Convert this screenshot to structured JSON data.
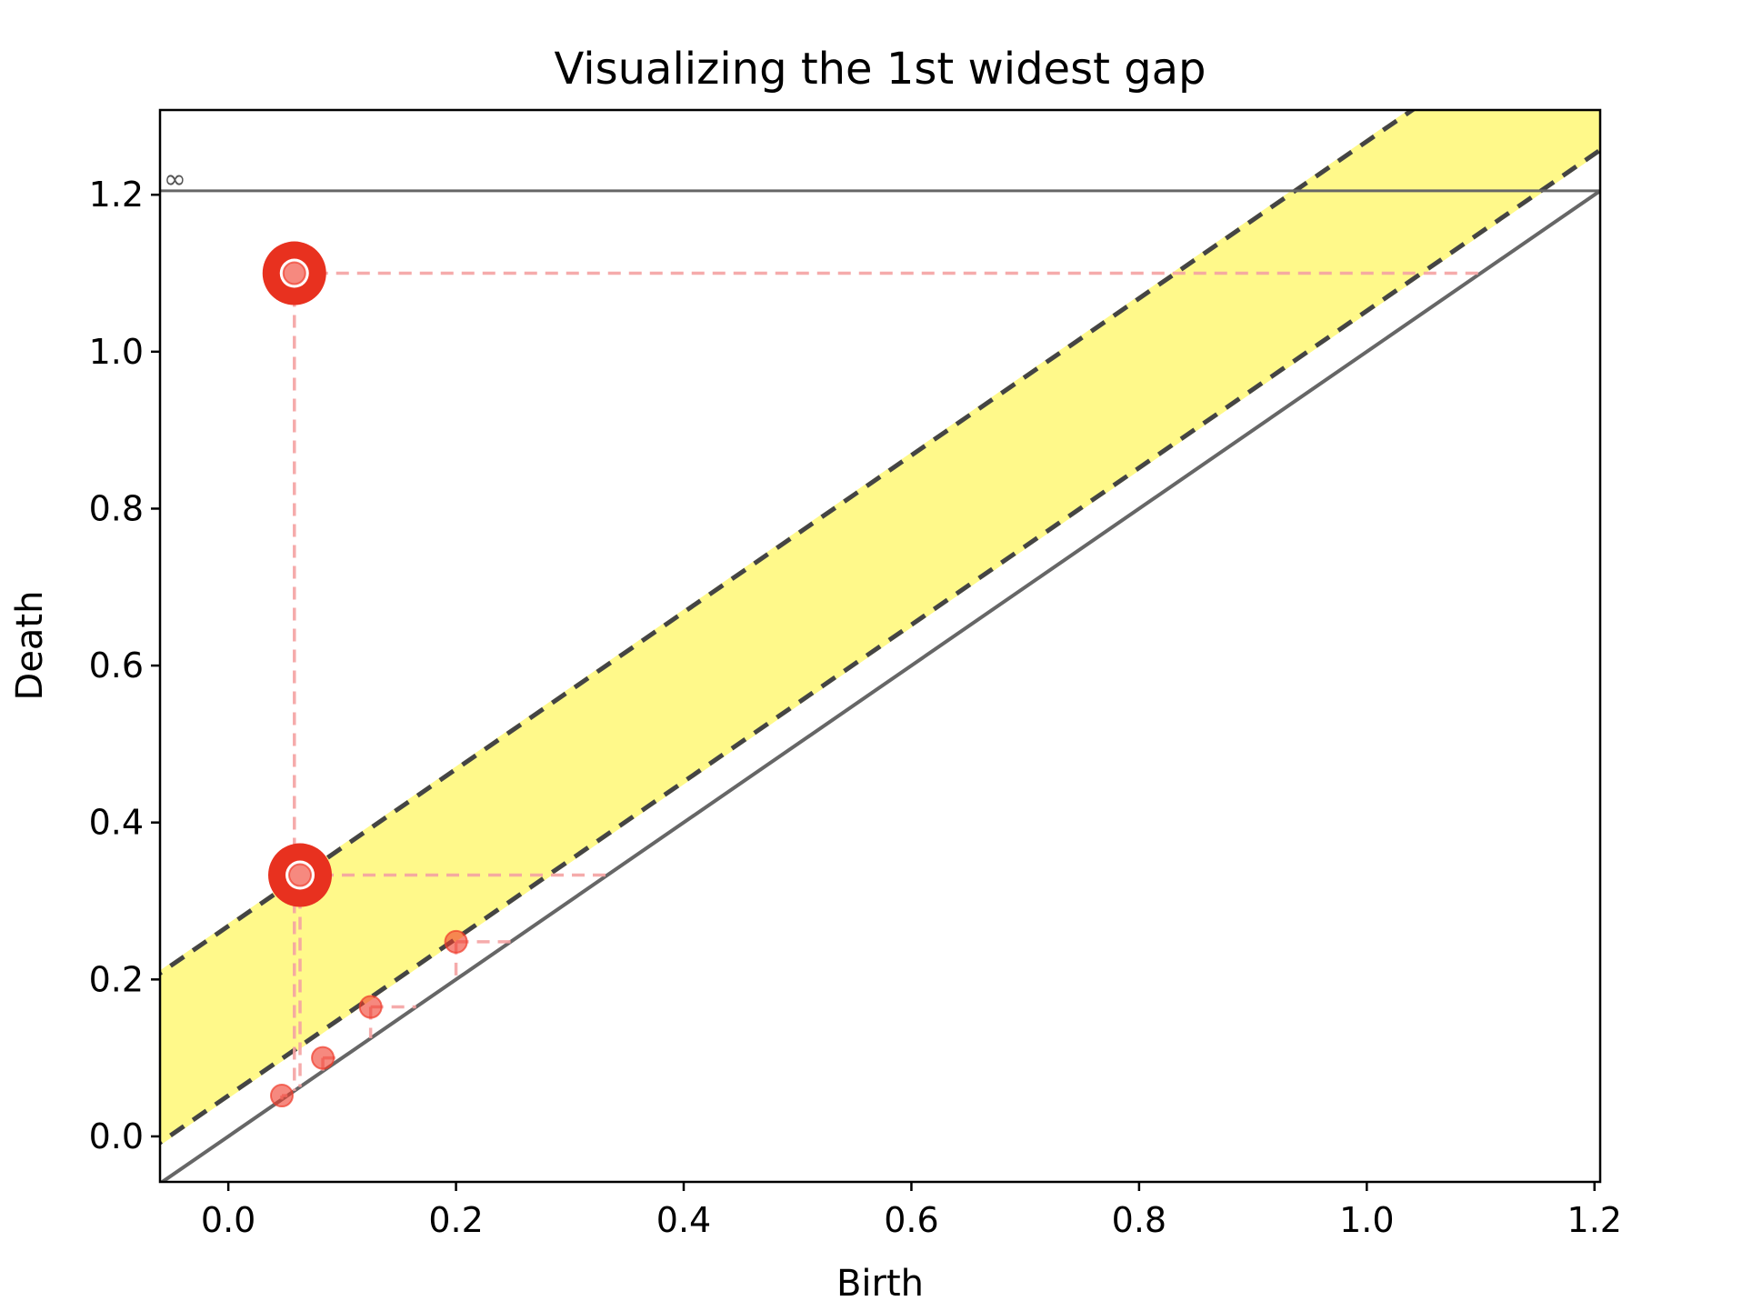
{
  "chart_data": {
    "type": "scatter",
    "title": "Visualizing the 1st widest gap",
    "xlabel": "Birth",
    "ylabel": "Death",
    "xlim": [
      -0.06,
      1.205
    ],
    "ylim": [
      -0.058,
      1.308
    ],
    "xticks": [
      0.0,
      0.2,
      0.4,
      0.6,
      0.8,
      1.0,
      1.2
    ],
    "yticks": [
      0.0,
      0.2,
      0.4,
      0.6,
      0.8,
      1.0,
      1.2
    ],
    "xtick_labels": [
      "0.0",
      "0.2",
      "0.4",
      "0.6",
      "0.8",
      "1.0",
      "1.2"
    ],
    "ytick_labels": [
      "0.0",
      "0.2",
      "0.4",
      "0.6",
      "0.8",
      "1.0",
      "1.2"
    ],
    "infinity_label": "∞",
    "infinity_value": 1.205,
    "grid": false,
    "points": [
      {
        "birth": 0.047,
        "death": 0.052,
        "highlighted": false
      },
      {
        "birth": 0.083,
        "death": 0.1,
        "highlighted": false
      },
      {
        "birth": 0.125,
        "death": 0.165,
        "highlighted": false
      },
      {
        "birth": 0.2,
        "death": 0.248,
        "highlighted": false
      },
      {
        "birth": 0.063,
        "death": 0.333,
        "highlighted": true
      },
      {
        "birth": 0.058,
        "death": 1.1,
        "highlighted": true
      }
    ],
    "gap_band": {
      "lower_offset": 0.052,
      "upper_offset": 0.268
    },
    "colors": {
      "points": "#f03a2a",
      "highlight_ring": "#e8311f",
      "band": "#fff98a",
      "diagonal": "#666666",
      "band_edge": "#444444",
      "guide": "#f5a3a3"
    }
  }
}
